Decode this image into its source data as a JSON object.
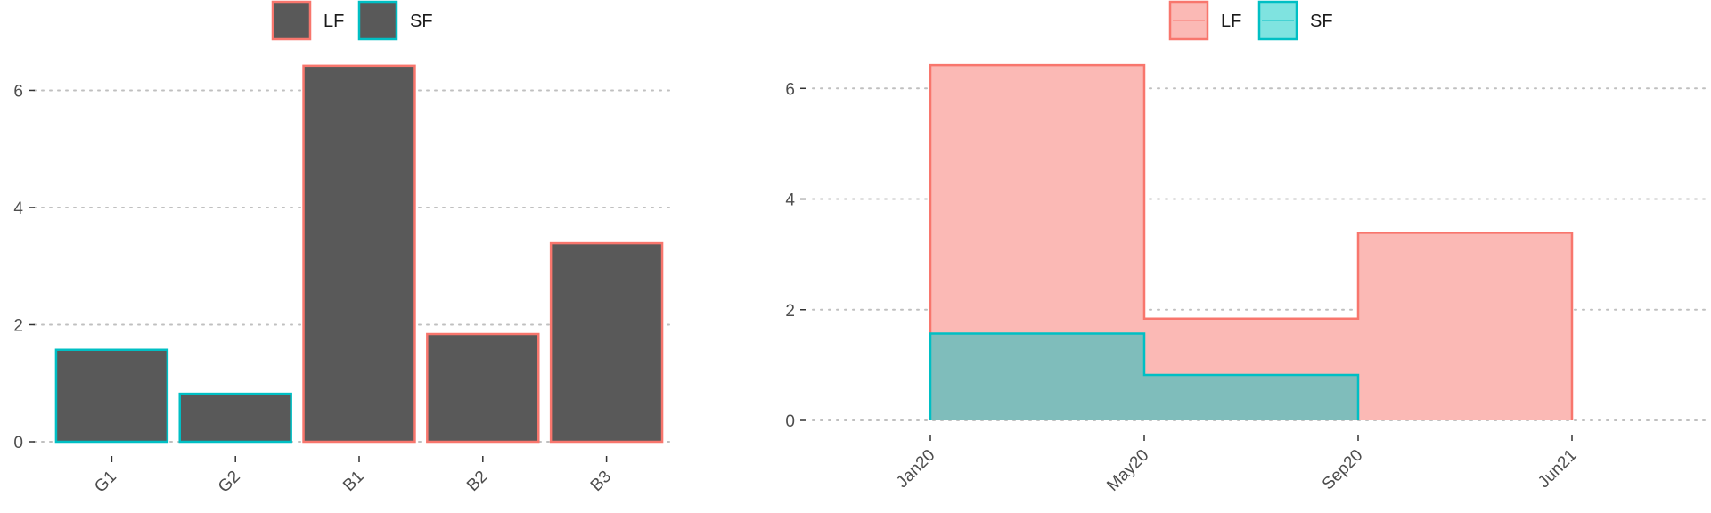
{
  "chart_data": [
    {
      "type": "bar",
      "categories": [
        "G1",
        "G2",
        "B1",
        "B2",
        "B3"
      ],
      "values": [
        1.57,
        0.82,
        6.42,
        1.84,
        3.39
      ],
      "group": [
        "SF",
        "SF",
        "LF",
        "LF",
        "LF"
      ],
      "fill_color": "#595959",
      "ylim": [
        0,
        6.6
      ],
      "yticks": [
        0,
        2,
        4,
        6
      ],
      "legend": [
        {
          "label": "LF",
          "color": "#f8766d"
        },
        {
          "label": "SF",
          "color": "#00bfc4"
        }
      ],
      "legend_position": "top",
      "grid": "horizontal-dotted"
    },
    {
      "type": "area",
      "step": true,
      "x_labels": [
        "Jan20",
        "May20",
        "Sep20",
        "Jun21"
      ],
      "series": [
        {
          "name": "LF",
          "color": "#f8766d",
          "fill": "#fbb9b5",
          "values": [
            6.42,
            1.84,
            3.39
          ]
        },
        {
          "name": "SF",
          "color": "#00bfc4",
          "fill": "#7fbdbb",
          "values": [
            1.57,
            0.82
          ]
        }
      ],
      "ylim": [
        0,
        6.6
      ],
      "yticks": [
        0,
        2,
        4,
        6
      ],
      "legend": [
        {
          "label": "LF",
          "color": "#f8766d",
          "fill": "#fbb9b5"
        },
        {
          "label": "SF",
          "color": "#00bfc4",
          "fill": "#7fe3e0"
        }
      ],
      "legend_position": "top",
      "grid": "horizontal-dotted"
    }
  ]
}
